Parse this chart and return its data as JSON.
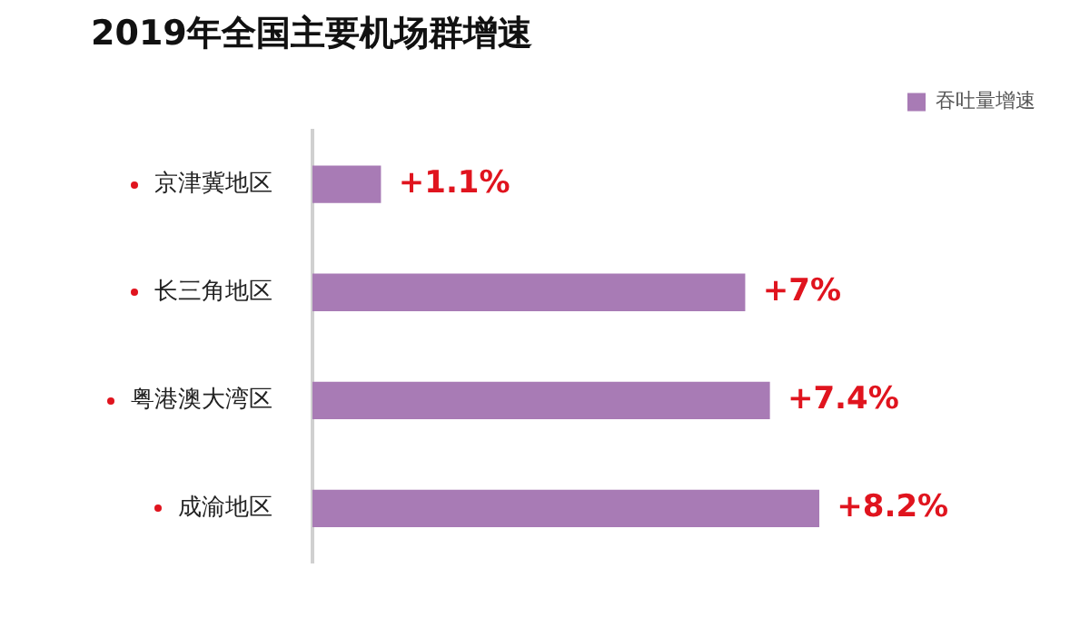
{
  "chart_data": {
    "type": "bar",
    "orientation": "horizontal",
    "title": "2019年全国主要机场群增速",
    "categories": [
      "京津冀地区",
      "长三角地区",
      "粤港澳大湾区",
      "成渝地区"
    ],
    "series": [
      {
        "name": "吞吐量增速",
        "color": "#a87bb5",
        "values": [
          1.1,
          7,
          7.4,
          8.2
        ],
        "value_labels": [
          "+1.1%",
          "+7%",
          "+7.4%",
          "+8.2%"
        ]
      }
    ],
    "legend": "top right",
    "grid": false
  }
}
